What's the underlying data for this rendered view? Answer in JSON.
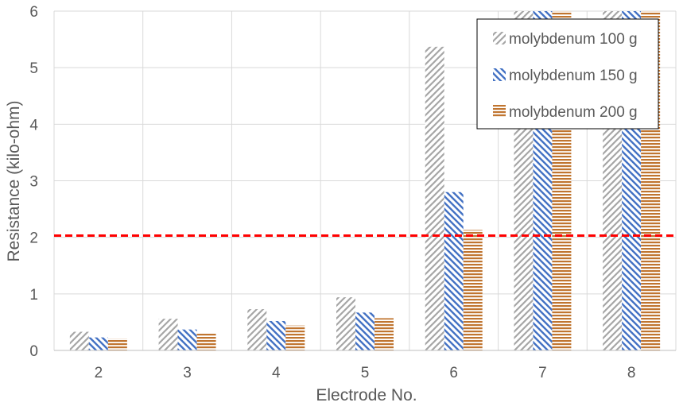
{
  "chart_data": {
    "type": "bar",
    "xlabel": "Electrode No.",
    "ylabel": "Resistance (kilo-ohm)",
    "ylim": [
      0,
      6
    ],
    "yticks": [
      "0",
      "1",
      "2",
      "3",
      "4",
      "5",
      "6"
    ],
    "categories": [
      "2",
      "3",
      "4",
      "5",
      "6",
      "7",
      "8"
    ],
    "grid": true,
    "legend_position": "top-right",
    "series": [
      {
        "name": "molybdenum 100 g",
        "color": "#a6a6a6",
        "pattern": "diagonal-up",
        "values": [
          0.33,
          0.56,
          0.73,
          0.94,
          5.37,
          6.0,
          6.0
        ]
      },
      {
        "name": "molybdenum 150 g",
        "color": "#4472c4",
        "pattern": "diagonal-down",
        "values": [
          0.23,
          0.37,
          0.52,
          0.67,
          2.8,
          6.0,
          6.0
        ]
      },
      {
        "name": "molybdenum 200 g",
        "color": "#c07530",
        "pattern": "horizontal",
        "values": [
          0.21,
          0.31,
          0.44,
          0.57,
          2.13,
          6.0,
          6.0
        ]
      }
    ],
    "threshold": {
      "value": 2.03,
      "color": "#ff0000",
      "style": "dashed"
    }
  }
}
